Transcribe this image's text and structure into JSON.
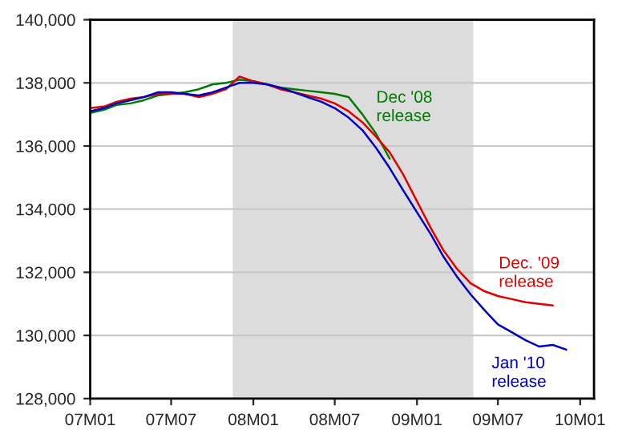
{
  "chart_data": {
    "type": "line",
    "x": [
      "2007-01",
      "2007-02",
      "2007-03",
      "2007-04",
      "2007-05",
      "2007-06",
      "2007-07",
      "2007-08",
      "2007-09",
      "2007-10",
      "2007-11",
      "2007-12",
      "2008-01",
      "2008-02",
      "2008-03",
      "2008-04",
      "2008-05",
      "2008-06",
      "2008-07",
      "2008-08",
      "2008-09",
      "2008-10",
      "2008-11",
      "2008-12",
      "2009-01",
      "2009-02",
      "2009-03",
      "2009-04",
      "2009-05",
      "2009-06",
      "2009-07",
      "2009-08",
      "2009-09",
      "2009-10",
      "2009-11",
      "2009-12"
    ],
    "series": [
      {
        "name": "Dec '08\nrelease",
        "color": "#007a00",
        "x": [
          "2007-01",
          "2007-02",
          "2007-03",
          "2007-04",
          "2007-05",
          "2007-06",
          "2007-07",
          "2007-08",
          "2007-09",
          "2007-10",
          "2007-11",
          "2007-12",
          "2008-01",
          "2008-02",
          "2008-03",
          "2008-04",
          "2008-05",
          "2008-06",
          "2008-07",
          "2008-08",
          "2008-09",
          "2008-10",
          "2008-11"
        ],
        "values": [
          137050,
          137150,
          137300,
          137350,
          137450,
          137600,
          137650,
          137700,
          137800,
          137950,
          138000,
          138100,
          138050,
          137950,
          137850,
          137800,
          137750,
          137700,
          137650,
          137550,
          137000,
          136400,
          135600
        ]
      },
      {
        "name": "Dec. '09\nrelease",
        "color": "#e00000",
        "x": [
          "2007-01",
          "2007-02",
          "2007-03",
          "2007-04",
          "2007-05",
          "2007-06",
          "2007-07",
          "2007-08",
          "2007-09",
          "2007-10",
          "2007-11",
          "2007-12",
          "2008-01",
          "2008-02",
          "2008-03",
          "2008-04",
          "2008-05",
          "2008-06",
          "2008-07",
          "2008-08",
          "2008-09",
          "2008-10",
          "2008-11",
          "2008-12",
          "2009-01",
          "2009-02",
          "2009-03",
          "2009-04",
          "2009-05",
          "2009-06",
          "2009-07",
          "2009-08",
          "2009-09",
          "2009-10",
          "2009-11"
        ],
        "values": [
          137200,
          137250,
          137400,
          137500,
          137550,
          137650,
          137650,
          137650,
          137550,
          137650,
          137800,
          138200,
          138050,
          137950,
          137800,
          137700,
          137600,
          137500,
          137350,
          137100,
          136750,
          136300,
          135800,
          135100,
          134250,
          133400,
          132700,
          132100,
          131650,
          131400,
          131250,
          131150,
          131050,
          131000,
          130950
        ]
      },
      {
        "name": "Jan '10\nrelease",
        "color": "#0000c0",
        "values": [
          137100,
          137200,
          137350,
          137450,
          137550,
          137700,
          137700,
          137650,
          137600,
          137700,
          137850,
          138000,
          138000,
          137950,
          137850,
          137700,
          137550,
          137400,
          137200,
          136900,
          136500,
          135950,
          135300,
          134600,
          133900,
          133200,
          132500,
          131850,
          131300,
          130800,
          130350,
          130100,
          129850,
          129650,
          129700,
          129550
        ]
      }
    ],
    "xlim": [
      "2007-01",
      "2010-02"
    ],
    "xticks": [
      {
        "value": "2007-01",
        "label": "07M01"
      },
      {
        "value": "2007-07",
        "label": "07M07"
      },
      {
        "value": "2008-01",
        "label": "08M01"
      },
      {
        "value": "2008-07",
        "label": "08M07"
      },
      {
        "value": "2009-01",
        "label": "09M01"
      },
      {
        "value": "2009-07",
        "label": "09M07"
      },
      {
        "value": "2010-01",
        "label": "10M01"
      }
    ],
    "ylim": [
      128000,
      140000
    ],
    "yticks": [
      {
        "value": 128000,
        "label": "128,000"
      },
      {
        "value": 130000,
        "label": "130,000"
      },
      {
        "value": 132000,
        "label": "132,000"
      },
      {
        "value": 134000,
        "label": "134,000"
      },
      {
        "value": 136000,
        "label": "136,000"
      },
      {
        "value": 138000,
        "label": "138,000"
      },
      {
        "value": 140000,
        "label": "140,000"
      }
    ],
    "bands": [
      {
        "axis": "x",
        "from": "2007-11-16",
        "to": "2009-05-07",
        "color": "#dcdcdc"
      }
    ],
    "grid": "y",
    "marker": "none",
    "line_style": "solid"
  }
}
